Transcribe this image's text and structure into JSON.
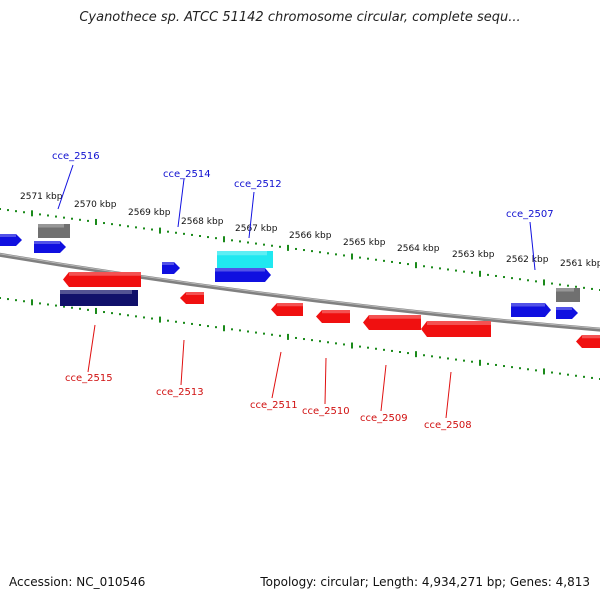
{
  "title": "Cyanothece sp. ATCC 51142 chromosome circular, complete sequ...",
  "footer": {
    "accession": "Accession: NC_010546",
    "summary": "Topology: circular; Length: 4,934,271 bp; Genes: 4,813"
  },
  "colors": {
    "forward_gene": "#1010e0",
    "reverse_gene": "#f01010",
    "pseudo_gene": "#707070",
    "highlight_gene": "#20e8f0",
    "dark_gene": "#10106a",
    "backbone": "#808080",
    "tick": "#1a8a1a"
  },
  "ruler_labels": [
    "2571 kbp",
    "2570 kbp",
    "2569 kbp",
    "2568 kbp",
    "2567 kbp",
    "2566 kbp",
    "2565 kbp",
    "2564 kbp",
    "2563 kbp",
    "2562 kbp",
    "2561 kbp"
  ],
  "gene_labels": {
    "forward": [
      "cce_2516",
      "cce_2514",
      "cce_2512",
      "cce_2507"
    ],
    "reverse": [
      "cce_2515",
      "cce_2513",
      "cce_2511",
      "cce_2510",
      "cce_2509",
      "cce_2508"
    ]
  }
}
